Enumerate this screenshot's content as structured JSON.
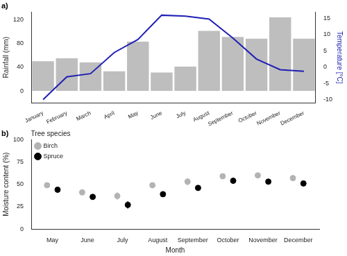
{
  "chart_data": [
    {
      "type": "bar",
      "title": "a)",
      "y_label": "Rainfall (mm)",
      "y2_label": "Temperature [°C]",
      "categories": [
        "January",
        "February",
        "March",
        "April",
        "May",
        "June",
        "July",
        "August",
        "September",
        "October",
        "November",
        "December"
      ],
      "series": [
        {
          "type": "bar",
          "color": "#bebebe",
          "values": [
            50,
            55,
            48,
            33,
            83,
            31,
            41,
            101,
            91,
            88,
            124,
            88
          ]
        },
        {
          "type": "line",
          "color": "#1f1fb4",
          "axis": "y2",
          "values": [
            -10,
            -3,
            -2,
            4.5,
            8.5,
            16,
            15.7,
            14.8,
            9,
            2.5,
            -0.8,
            -1.3
          ]
        }
      ],
      "ylim": [
        -20,
        133
      ],
      "yticks": [
        0,
        40,
        80,
        120
      ],
      "y2lim": [
        -11,
        17
      ],
      "y2ticks": [
        -10,
        -5,
        0,
        5,
        10,
        15
      ],
      "grid": false
    },
    {
      "type": "scatter",
      "title": "b)",
      "x_label": "Month",
      "y_label": "Moisture content (%)",
      "legend_title": "Tree species",
      "categories": [
        "May",
        "June",
        "July",
        "August",
        "September",
        "October",
        "November",
        "December"
      ],
      "series": [
        {
          "name": "Birch",
          "color": "#b3b3b3",
          "marker": "circle",
          "values": [
            49,
            41,
            37,
            49,
            53,
            59,
            60,
            57
          ],
          "errors": [
            2,
            3,
            4,
            3,
            4,
            3,
            3,
            3
          ]
        },
        {
          "name": "Spruce",
          "color": "#000000",
          "marker": "circle",
          "values": [
            44,
            36,
            27,
            39,
            46,
            54,
            53,
            51
          ],
          "errors": [
            2,
            3,
            4,
            3,
            3,
            2,
            2,
            2
          ]
        }
      ],
      "ylim": [
        0,
        100
      ],
      "yticks": [
        0,
        25,
        50,
        75,
        100
      ],
      "legend": "top left",
      "grid": false
    }
  ]
}
